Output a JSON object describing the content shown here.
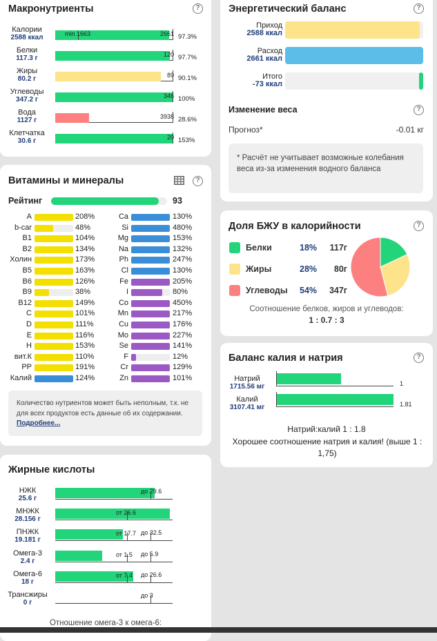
{
  "colors": {
    "green": "#22d47a",
    "yellow": "#fde38a",
    "red": "#fd8080",
    "blue": "#5bbde8",
    "vit_yellow": "#f3df00",
    "vit_blue": "#3a8ed8",
    "vit_purple": "#9b59c4",
    "navy": "#1f3d7a"
  },
  "macro": {
    "title": "Макронутриенты",
    "help": "?",
    "rows": [
      {
        "name": "Калории",
        "value": "2588 ккал",
        "marker": "2661",
        "min_label": "min 1663",
        "pct": "97.3%",
        "fill": 0.973,
        "color": "green"
      },
      {
        "name": "Белки",
        "value": "117.3 г",
        "marker": "120",
        "pct": "97.7%",
        "fill": 0.977,
        "color": "green"
      },
      {
        "name": "Жиры",
        "value": "80.2 г",
        "marker": "89",
        "pct": "90.1%",
        "fill": 0.901,
        "color": "yellow"
      },
      {
        "name": "Углеводы",
        "value": "347.2 г",
        "marker": "346",
        "pct": "100%",
        "fill": 1.0,
        "color": "green"
      },
      {
        "name": "Вода",
        "value": "1127 г",
        "marker": "3938",
        "pct": "28.6%",
        "fill": 0.286,
        "color": "red"
      },
      {
        "name": "Клетчатка",
        "value": "30.6 г",
        "marker": "20",
        "pct": "153%",
        "fill": 1.0,
        "color": "green"
      }
    ]
  },
  "energy": {
    "title": "Энергетический баланс",
    "help": "?",
    "rows": [
      {
        "name": "Приход",
        "value": "2588 ккал",
        "fill": 0.973,
        "color": "yellow"
      },
      {
        "name": "Расход",
        "value": "2661 ккал",
        "fill": 1.0,
        "color": "blue"
      },
      {
        "name": "Итого",
        "value": "-73 ккал",
        "fill": 0.027,
        "color": "green"
      }
    ],
    "weight_title": "Изменение веса",
    "forecast_label": "Прогноз*",
    "forecast_value": "-0.01 кг",
    "note": "* Расчёт не учитывает возможные колебания веса из-за изменения водного баланса"
  },
  "vitamins": {
    "title": "Витамины и минералы",
    "help": "?",
    "rating_label": "Рейтинг",
    "rating_value": "93",
    "rating_fill": 0.93,
    "left": [
      {
        "n": "A",
        "p": "208%",
        "f": 1.0
      },
      {
        "n": "b-car",
        "p": "48%",
        "f": 0.48
      },
      {
        "n": "B1",
        "p": "104%",
        "f": 1.0
      },
      {
        "n": "B2",
        "p": "134%",
        "f": 1.0
      },
      {
        "n": "Холин",
        "p": "173%",
        "f": 1.0
      },
      {
        "n": "B5",
        "p": "163%",
        "f": 1.0
      },
      {
        "n": "B6",
        "p": "126%",
        "f": 1.0
      },
      {
        "n": "B9",
        "p": "38%",
        "f": 0.38
      },
      {
        "n": "B12",
        "p": "149%",
        "f": 1.0
      },
      {
        "n": "C",
        "p": "101%",
        "f": 1.0
      },
      {
        "n": "D",
        "p": "111%",
        "f": 1.0
      },
      {
        "n": "E",
        "p": "116%",
        "f": 1.0
      },
      {
        "n": "H",
        "p": "153%",
        "f": 1.0
      },
      {
        "n": "вит.К",
        "p": "110%",
        "f": 1.0
      },
      {
        "n": "PP",
        "p": "191%",
        "f": 1.0
      },
      {
        "n": "Калий",
        "p": "124%",
        "f": 1.0
      }
    ],
    "right": [
      {
        "n": "Ca",
        "p": "130%",
        "f": 1.0
      },
      {
        "n": "Si",
        "p": "480%",
        "f": 1.0
      },
      {
        "n": "Mg",
        "p": "153%",
        "f": 1.0
      },
      {
        "n": "Na",
        "p": "132%",
        "f": 1.0
      },
      {
        "n": "Ph",
        "p": "247%",
        "f": 1.0
      },
      {
        "n": "Cl",
        "p": "130%",
        "f": 1.0
      },
      {
        "n": "Fe",
        "p": "205%",
        "f": 1.0
      },
      {
        "n": "I",
        "p": "80%",
        "f": 0.8
      },
      {
        "n": "Co",
        "p": "450%",
        "f": 1.0
      },
      {
        "n": "Mn",
        "p": "217%",
        "f": 1.0
      },
      {
        "n": "Cu",
        "p": "176%",
        "f": 1.0
      },
      {
        "n": "Mo",
        "p": "227%",
        "f": 1.0
      },
      {
        "n": "Se",
        "p": "141%",
        "f": 1.0
      },
      {
        "n": "F",
        "p": "12%",
        "f": 0.12
      },
      {
        "n": "Cr",
        "p": "129%",
        "f": 1.0
      },
      {
        "n": "Zn",
        "p": "101%",
        "f": 1.0
      }
    ],
    "note": "Количество нутриентов может быть неполным, т.к. не для всех продуктов есть данные об их содержании.",
    "note_link": "Подробнее..."
  },
  "bju": {
    "title": "Доля БЖУ в калорийности",
    "help": "?",
    "rows": [
      {
        "name": "Белки",
        "pct": "18%",
        "g": "117г",
        "color": "green",
        "share": 0.18
      },
      {
        "name": "Жиры",
        "pct": "28%",
        "g": "80г",
        "color": "yellow",
        "share": 0.28
      },
      {
        "name": "Углеводы",
        "pct": "54%",
        "g": "347г",
        "color": "red",
        "share": 0.54
      }
    ],
    "ratio_text": "Соотношение белков, жиров и углеводов:",
    "ratio_value": "1 : 0.7 : 3"
  },
  "kna": {
    "title": "Баланс калия и натрия",
    "help": "?",
    "rows": [
      {
        "name": "Натрий",
        "value": "1715.56 мг",
        "marker": "1",
        "fill": 0.55
      },
      {
        "name": "Калий",
        "value": "3107.41 мг",
        "marker": "1.81",
        "fill": 1.0
      }
    ],
    "ratio": "Натрий:калий 1 : 1.8",
    "comment": "Хорошее соотношение натрия и калия! (выше 1 : 1,75)"
  },
  "fat": {
    "title": "Жирные кислоты",
    "rows": [
      {
        "name": "НЖК",
        "value": "25.6 г",
        "from": "",
        "to": "до 29.6",
        "fill": 0.865
      },
      {
        "name": "МНЖК",
        "value": "28.156 г",
        "from": "от 26.6",
        "to": "",
        "fill": 1.0
      },
      {
        "name": "ПНЖК",
        "value": "19.181 г",
        "from": "от 17.7",
        "to": "до 32.5",
        "fill": 0.59
      },
      {
        "name": "Омега-3",
        "value": "2.4 г",
        "from": "от 1.5",
        "to": "до 5.9",
        "fill": 0.41
      },
      {
        "name": "Омега-6",
        "value": "18 г",
        "from": "от 7.4",
        "to": "до 26.6",
        "fill": 0.68
      },
      {
        "name": "Трансжиры",
        "value": "0 г",
        "from": "",
        "to": "до 3",
        "fill": 0
      }
    ],
    "footer": "Отношение омега-3 к омега-6:"
  }
}
